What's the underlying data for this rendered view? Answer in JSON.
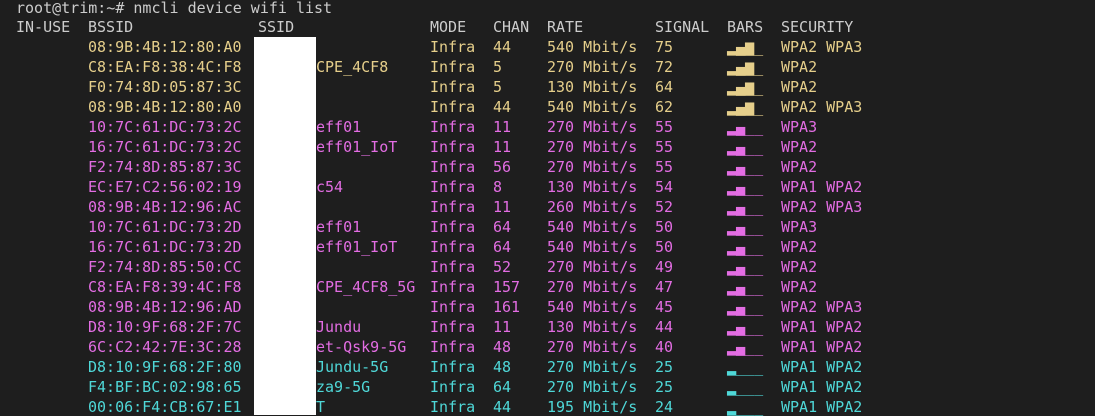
{
  "prompt": "root@trim:~# nmcli device wifi list",
  "headers": [
    "IN-USE",
    "BSSID",
    "SSID",
    "MODE",
    "CHAN",
    "RATE",
    "SIGNAL",
    "BARS",
    "SECURITY"
  ],
  "rows": [
    {
      "bssid": "08:9B:4B:12:80:A0",
      "mode": "Infra",
      "chan": "44",
      "rate": "540 Mbit/s",
      "signal": "75",
      "bars": "▂▄▆_",
      "security": "WPA2 WPA3",
      "color": "#e6cf8b"
    },
    {
      "bssid": "C8:EA:F8:38:4C:F8",
      "ssid": "CPE_4CF8",
      "mode": "Infra",
      "chan": "5",
      "rate": "270 Mbit/s",
      "signal": "72",
      "bars": "▂▄▆_",
      "security": "WPA2",
      "color": "#e6cf8b"
    },
    {
      "bssid": "F0:74:8D:05:87:3C",
      "mode": "Infra",
      "chan": "5",
      "rate": "130 Mbit/s",
      "signal": "64",
      "bars": "▂▄▆_",
      "security": "WPA2",
      "color": "#e6cf8b"
    },
    {
      "bssid": "08:9B:4B:12:80:A0",
      "mode": "Infra",
      "chan": "44",
      "rate": "540 Mbit/s",
      "signal": "62",
      "bars": "▂▄▆_",
      "security": "WPA2 WPA3",
      "color": "#e6cf8b"
    },
    {
      "bssid": "10:7C:61:DC:73:2C",
      "ssid": "eff01",
      "mode": "Infra",
      "chan": "11",
      "rate": "270 Mbit/s",
      "signal": "55",
      "bars": "▂▄__",
      "security": "WPA3",
      "color": "#e36de3"
    },
    {
      "bssid": "16:7C:61:DC:73:2C",
      "ssid": "eff01_IoT",
      "mode": "Infra",
      "chan": "11",
      "rate": "270 Mbit/s",
      "signal": "55",
      "bars": "▂▄__",
      "security": "WPA2",
      "color": "#e36de3"
    },
    {
      "bssid": "F2:74:8D:85:87:3C",
      "mode": "Infra",
      "chan": "56",
      "rate": "270 Mbit/s",
      "signal": "55",
      "bars": "▂▄__",
      "security": "WPA2",
      "color": "#e36de3"
    },
    {
      "bssid": "EC:E7:C2:56:02:19",
      "ssid": "c54",
      "mode": "Infra",
      "chan": "8",
      "rate": "130 Mbit/s",
      "signal": "54",
      "bars": "▂▄__",
      "security": "WPA1 WPA2",
      "color": "#e36de3"
    },
    {
      "bssid": "08:9B:4B:12:96:AC",
      "mode": "Infra",
      "chan": "11",
      "rate": "260 Mbit/s",
      "signal": "52",
      "bars": "▂▄__",
      "security": "WPA2 WPA3",
      "color": "#e36de3"
    },
    {
      "bssid": "10:7C:61:DC:73:2D",
      "ssid": "eff01",
      "mode": "Infra",
      "chan": "64",
      "rate": "540 Mbit/s",
      "signal": "50",
      "bars": "▂▄__",
      "security": "WPA3",
      "color": "#e36de3"
    },
    {
      "bssid": "16:7C:61:DC:73:2D",
      "ssid": "eff01_IoT",
      "mode": "Infra",
      "chan": "64",
      "rate": "540 Mbit/s",
      "signal": "50",
      "bars": "▂▄__",
      "security": "WPA2",
      "color": "#e36de3"
    },
    {
      "bssid": "F2:74:8D:85:50:CC",
      "mode": "Infra",
      "chan": "52",
      "rate": "270 Mbit/s",
      "signal": "49",
      "bars": "▂▄__",
      "security": "WPA2",
      "color": "#e36de3"
    },
    {
      "bssid": "C8:EA:F8:39:4C:F8",
      "ssid": "CPE_4CF8_5G",
      "mode": "Infra",
      "chan": "157",
      "rate": "270 Mbit/s",
      "signal": "47",
      "bars": "▂▄__",
      "security": "WPA2",
      "color": "#e36de3"
    },
    {
      "bssid": "08:9B:4B:12:96:AD",
      "mode": "Infra",
      "chan": "161",
      "rate": "540 Mbit/s",
      "signal": "45",
      "bars": "▂▄__",
      "security": "WPA2 WPA3",
      "color": "#e36de3"
    },
    {
      "bssid": "D8:10:9F:68:2F:7C",
      "ssid": "Jundu",
      "mode": "Infra",
      "chan": "11",
      "rate": "130 Mbit/s",
      "signal": "44",
      "bars": "▂▄__",
      "security": "WPA1 WPA2",
      "color": "#e36de3"
    },
    {
      "bssid": "6C:C2:42:7E:3C:28",
      "ssid": "et-Qsk9-5G",
      "mode": "Infra",
      "chan": "48",
      "rate": "270 Mbit/s",
      "signal": "40",
      "bars": "▂▄__",
      "security": "WPA1 WPA2",
      "color": "#e36de3"
    },
    {
      "bssid": "D8:10:9F:68:2F:80",
      "ssid": "Jundu-5G",
      "mode": "Infra",
      "chan": "48",
      "rate": "270 Mbit/s",
      "signal": "25",
      "bars": "▂___",
      "security": "WPA1 WPA2",
      "color": "#4fd8d8"
    },
    {
      "bssid": "F4:BF:BC:02:98:65",
      "ssid": "za9-5G",
      "mode": "Infra",
      "chan": "64",
      "rate": "270 Mbit/s",
      "signal": "25",
      "bars": "▂___",
      "security": "WPA1 WPA2",
      "color": "#4fd8d8"
    },
    {
      "bssid": "00:06:F4:CB:67:E1",
      "ssid": "T",
      "mode": "Infra",
      "chan": "44",
      "rate": "195 Mbit/s",
      "signal": "24",
      "bars": "▂___",
      "security": "WPA1 WPA2",
      "color": "#4fd8d8"
    }
  ]
}
